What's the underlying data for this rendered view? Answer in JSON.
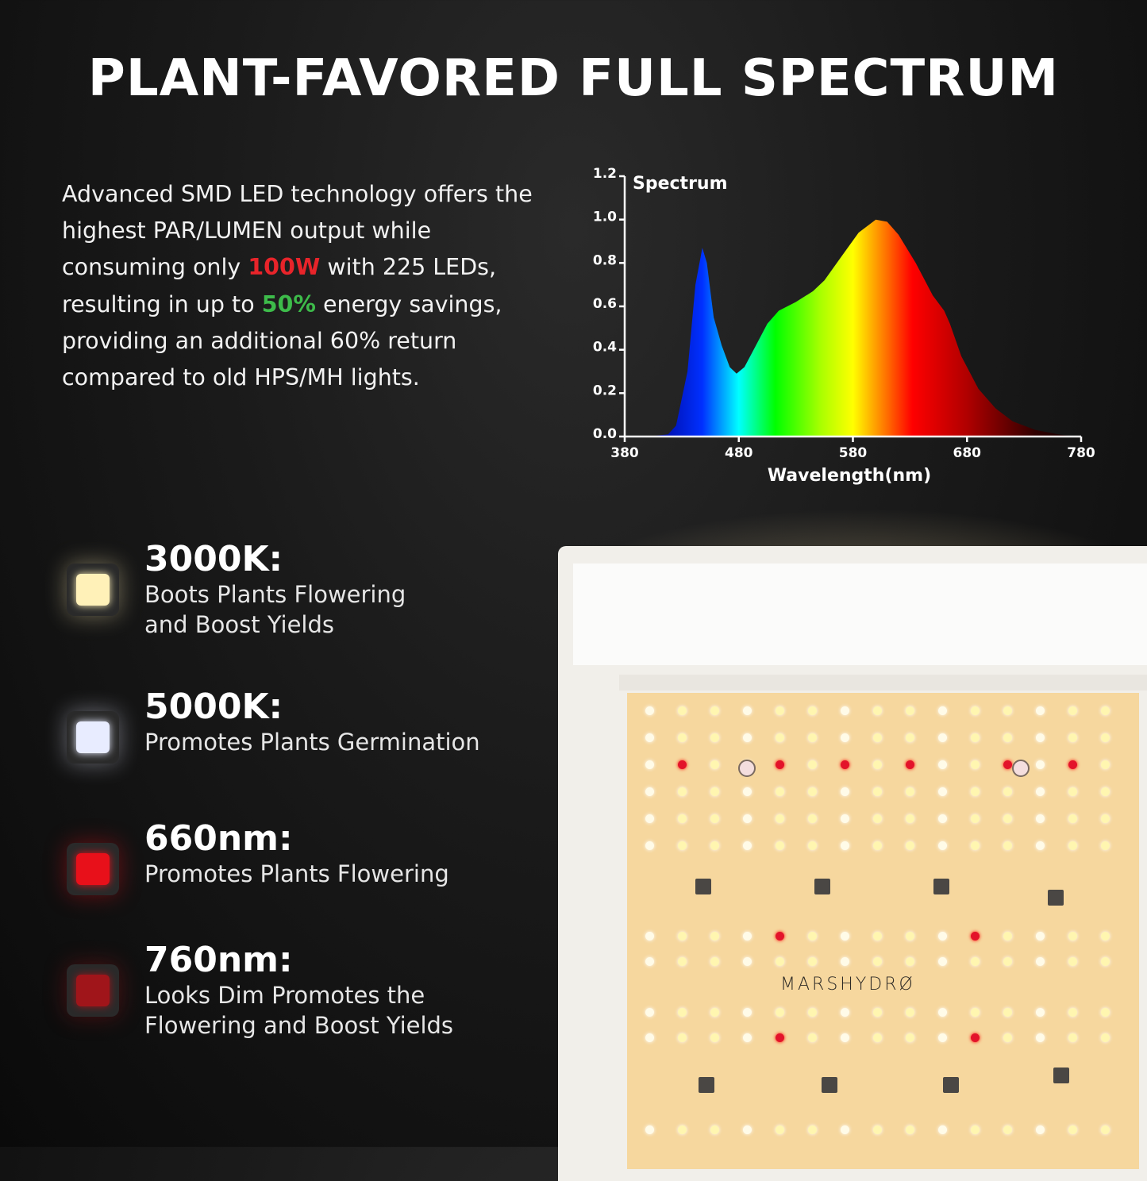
{
  "title": "PLANT-FAVORED FULL SPECTRUM",
  "intro": {
    "p1": "Advanced SMD LED technology offers the highest PAR/LUMEN output while consuming only ",
    "power": "100W",
    "p2": " with 225 LEDs, resulting in up to ",
    "savings": "50%",
    "p3": " energy savings, providing an additional 60% return compared to old HPS/MH lights."
  },
  "colors": {
    "power": "#e8242a",
    "savings": "#3dbb4a"
  },
  "features": [
    {
      "heading": "3000K:",
      "desc": "Boots Plants Flowering and Boost Yields",
      "icon": "warm-white-led-icon",
      "color": "#fff1b8"
    },
    {
      "heading": "5000K:",
      "desc": "Promotes Plants Germination",
      "icon": "cool-white-led-icon",
      "color": "#e8ecff"
    },
    {
      "heading": "660nm:",
      "desc": "Promotes Plants Flowering",
      "icon": "red-led-icon",
      "color": "#e8101a"
    },
    {
      "heading": "760nm:",
      "desc": "Looks Dim Promotes the Flowering and Boost Yields",
      "icon": "far-red-led-icon",
      "color": "#a0151a"
    }
  ],
  "brand_logo": "MARSHYDRØ",
  "chart_data": {
    "type": "area",
    "title": "Spectrum",
    "xlabel": "Wavelength(nm)",
    "ylabel": "",
    "xlim": [
      380,
      780
    ],
    "ylim": [
      0,
      1.2
    ],
    "xticks": [
      "380",
      "480",
      "580",
      "680",
      "780"
    ],
    "yticks": [
      "0.0",
      "0.2",
      "0.4",
      "0.6",
      "0.8",
      "1.0",
      "1.2"
    ],
    "grid": false,
    "x": [
      400,
      418,
      425,
      435,
      442,
      448,
      452,
      458,
      465,
      472,
      478,
      485,
      495,
      505,
      515,
      530,
      545,
      555,
      570,
      585,
      600,
      610,
      620,
      635,
      650,
      660,
      665,
      675,
      690,
      705,
      720,
      740,
      760,
      775
    ],
    "y": [
      0,
      0.01,
      0.05,
      0.3,
      0.7,
      0.87,
      0.8,
      0.55,
      0.42,
      0.32,
      0.29,
      0.32,
      0.42,
      0.52,
      0.58,
      0.62,
      0.67,
      0.72,
      0.83,
      0.94,
      1.0,
      0.99,
      0.93,
      0.8,
      0.65,
      0.58,
      0.52,
      0.37,
      0.22,
      0.13,
      0.07,
      0.03,
      0.01,
      0
    ],
    "fill": "wavelength-colored gradient"
  }
}
